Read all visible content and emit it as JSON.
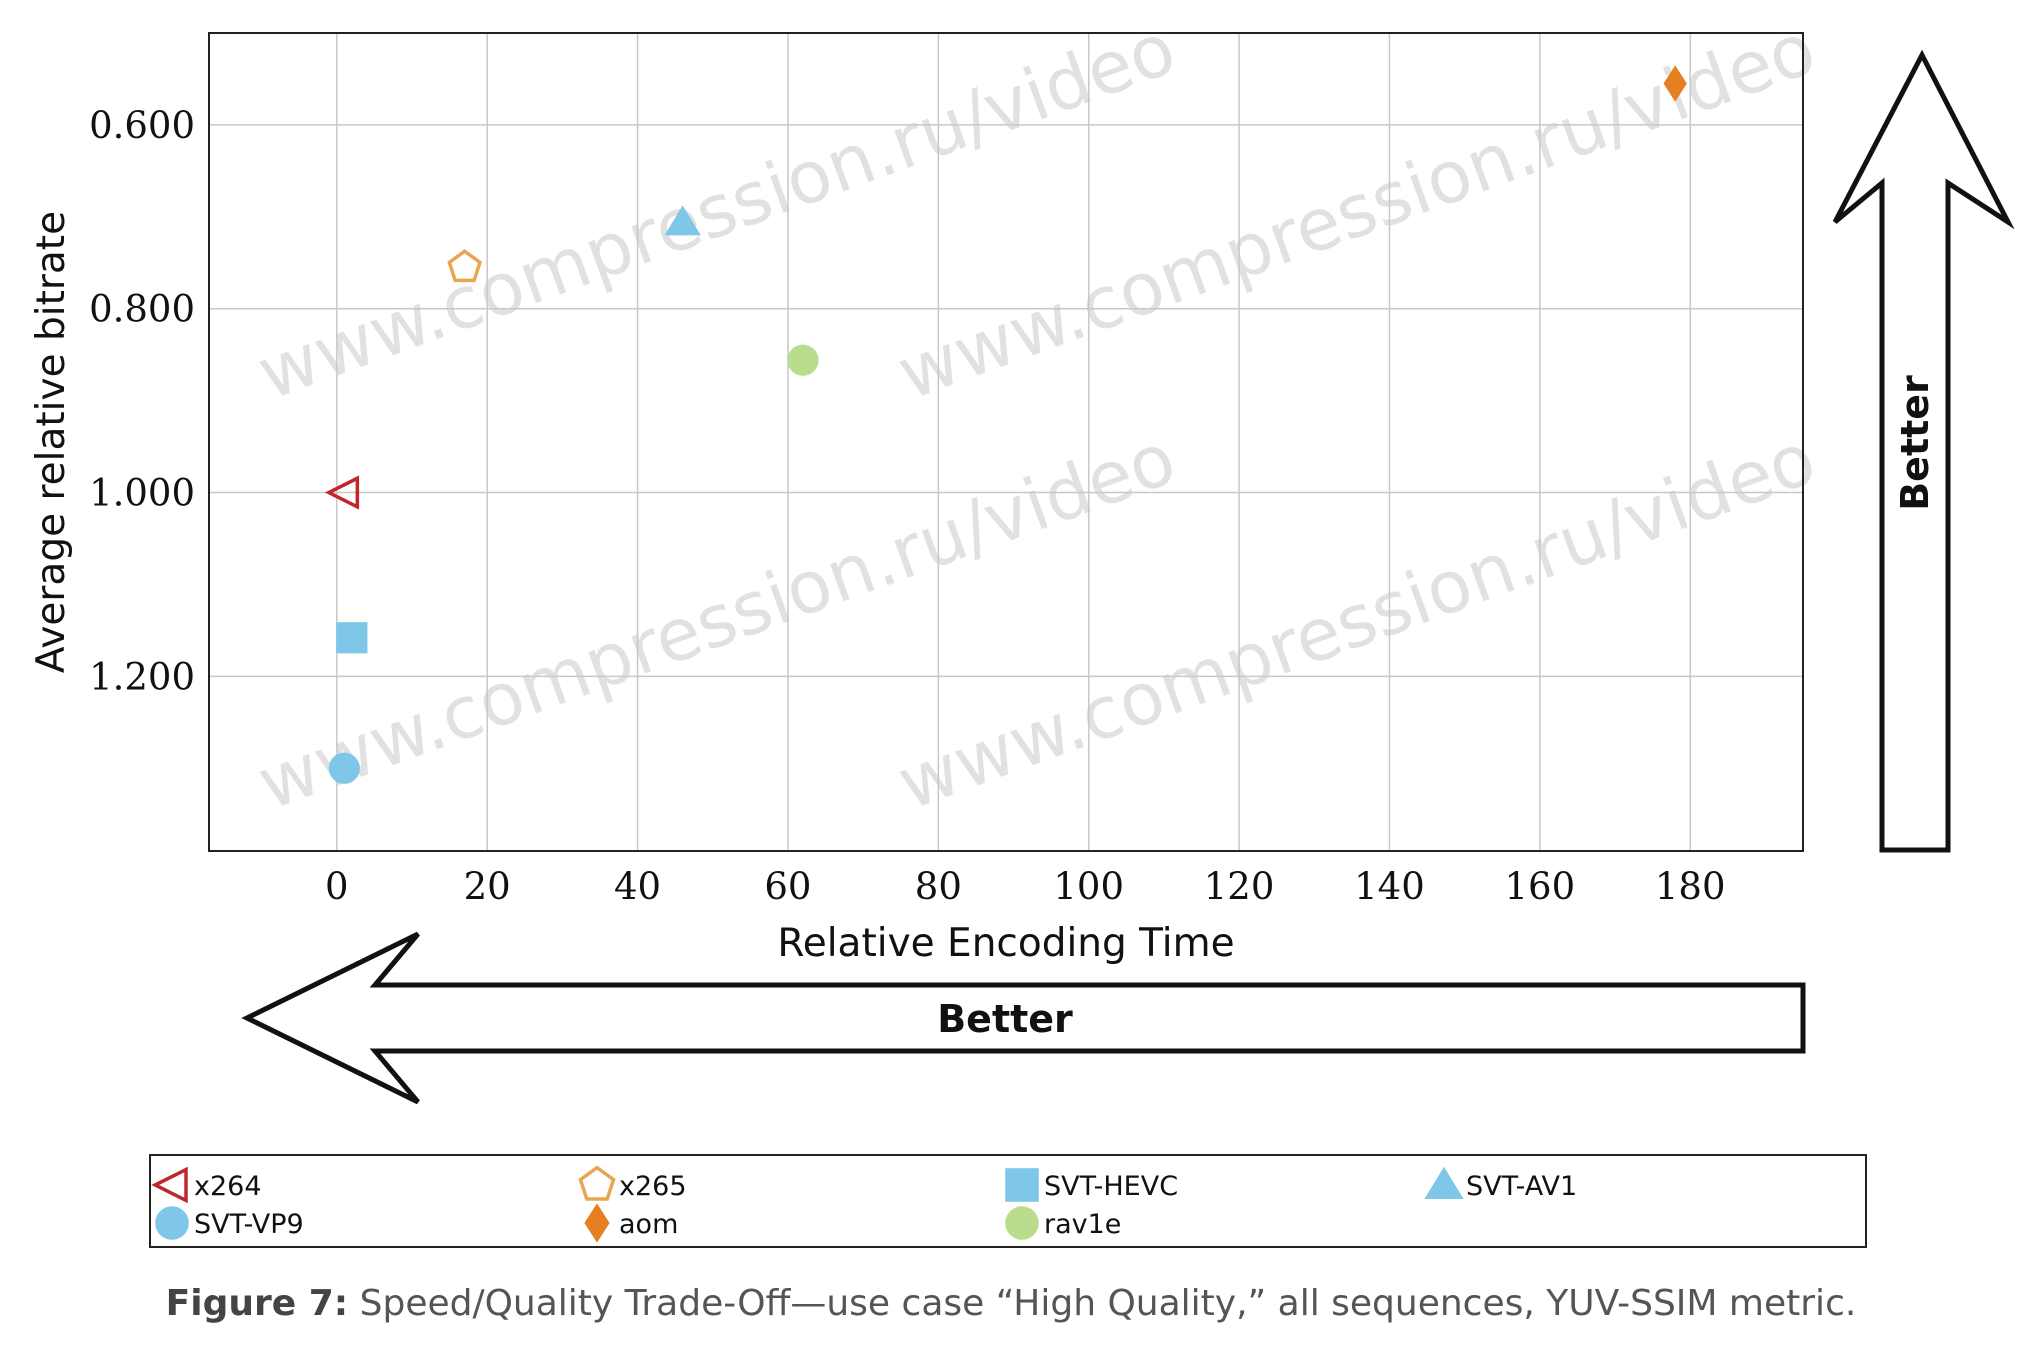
{
  "chart_data": {
    "type": "scatter",
    "xlabel": "Relative Encoding Time",
    "ylabel": "Average relative bitrate",
    "xlim": [
      -17,
      195
    ],
    "ylim": [
      1.39,
      0.5
    ],
    "y_inverted": true,
    "x_ticks": [
      0,
      20,
      40,
      60,
      80,
      100,
      120,
      140,
      160,
      180
    ],
    "y_ticks": [
      0.6,
      0.8,
      1.0,
      1.2
    ],
    "y_tick_labels": [
      "0.600",
      "0.800",
      "1.000",
      "1.200"
    ],
    "grid": true,
    "legend_placement": "bottom",
    "series": [
      {
        "name": "x264",
        "marker": "triangle-left-open",
        "color": "#c0272d",
        "points": [
          {
            "x": 1,
            "y": 1.0
          }
        ]
      },
      {
        "name": "x265",
        "marker": "pentagon-open",
        "color": "#e8a552",
        "points": [
          {
            "x": 17,
            "y": 0.755
          }
        ]
      },
      {
        "name": "SVT-HEVC",
        "marker": "square",
        "color": "#7ec7e8",
        "points": [
          {
            "x": 2,
            "y": 1.158
          }
        ]
      },
      {
        "name": "SVT-AV1",
        "marker": "triangle-up",
        "color": "#7ec7e8",
        "points": [
          {
            "x": 46,
            "y": 0.706
          }
        ]
      },
      {
        "name": "SVT-VP9",
        "marker": "circle",
        "color": "#7ec7e8",
        "points": [
          {
            "x": 1,
            "y": 1.3
          }
        ]
      },
      {
        "name": "aom",
        "marker": "diamond",
        "color": "#e67e22",
        "points": [
          {
            "x": 178,
            "y": 0.555
          }
        ]
      },
      {
        "name": "rav1e",
        "marker": "circle",
        "color": "#b9dd8c",
        "points": [
          {
            "x": 62,
            "y": 0.856
          }
        ]
      }
    ]
  },
  "annotations": {
    "better_vertical": "Better",
    "better_horizontal": "Better"
  },
  "watermark": "www.compression.ru/video",
  "caption": {
    "label": "Figure 7:",
    "text": "Speed/Quality Trade-Off—use case “High Quality,” all sequences, YUV-SSIM metric."
  }
}
